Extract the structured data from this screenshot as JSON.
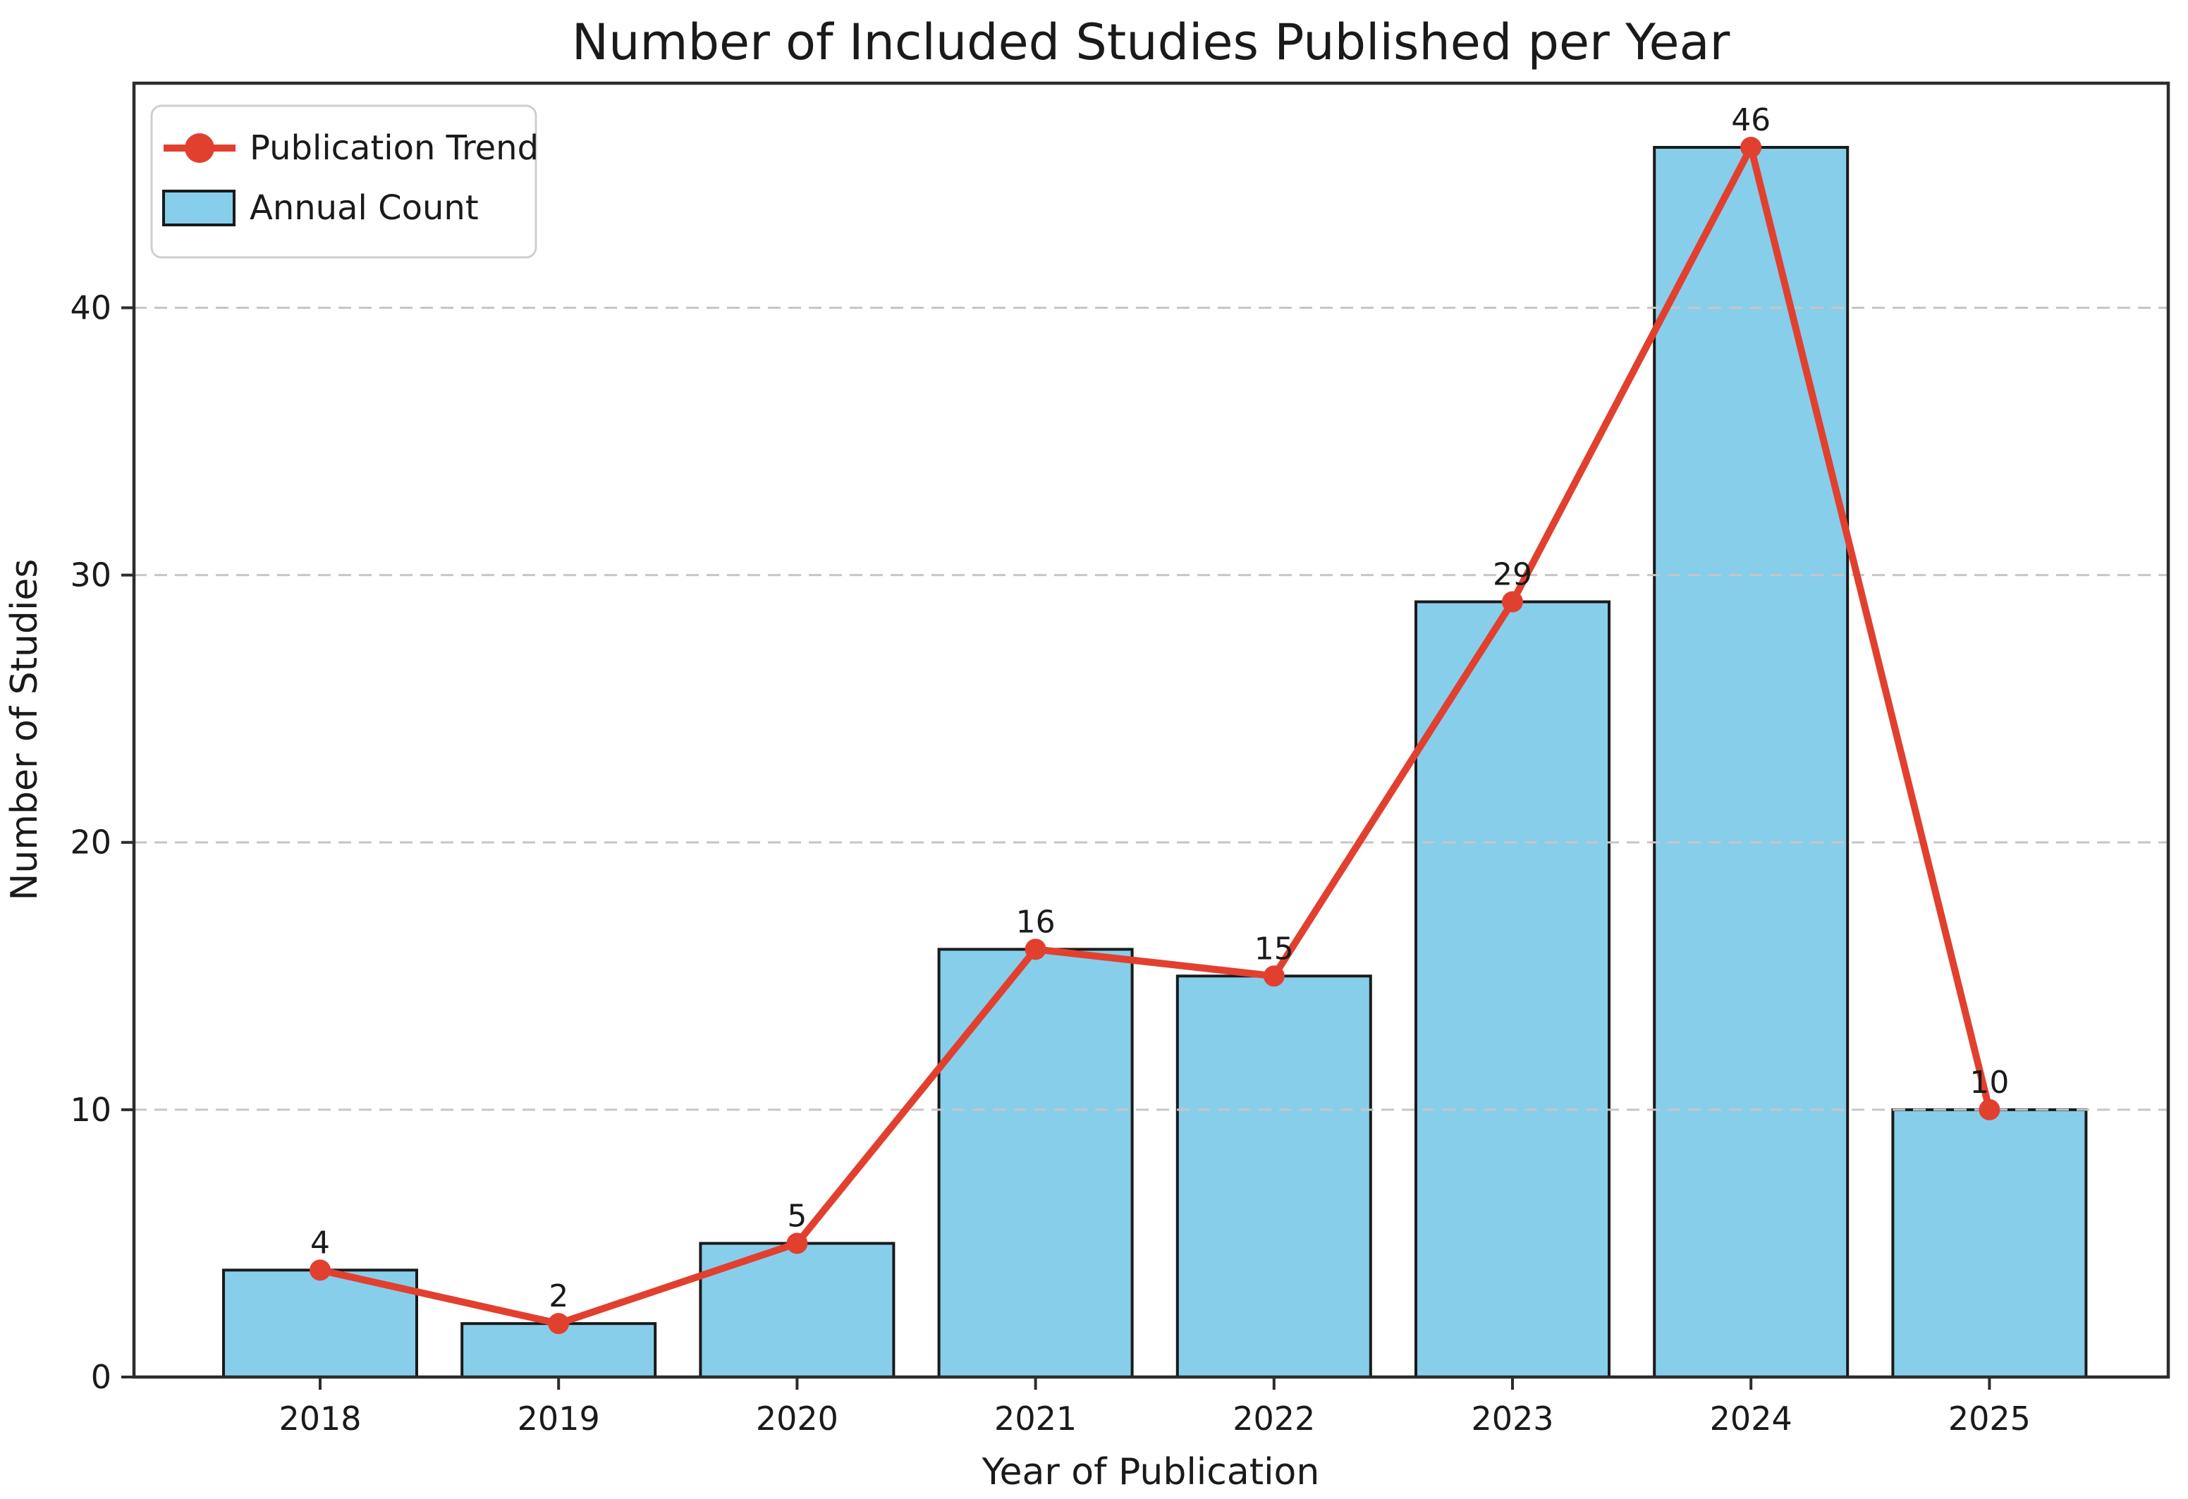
{
  "chart_data": {
    "type": "bar+line combo",
    "title": "Number of Included Studies Published per Year",
    "xlabel": "Year of Publication",
    "ylabel": "Number of Studies",
    "categories": [
      "2018",
      "2019",
      "2020",
      "2021",
      "2022",
      "2023",
      "2024",
      "2025"
    ],
    "series": [
      {
        "name": "Annual Count",
        "type": "bar",
        "values": [
          4,
          2,
          5,
          16,
          15,
          29,
          46,
          10
        ]
      },
      {
        "name": "Publication Trend",
        "type": "line",
        "values": [
          4,
          2,
          5,
          16,
          15,
          29,
          46,
          10
        ]
      }
    ],
    "data_labels": [
      "4",
      "2",
      "5",
      "16",
      "15",
      "29",
      "46",
      "10"
    ],
    "yticks": [
      0,
      10,
      20,
      30,
      40
    ],
    "ylim": [
      0,
      48.4
    ],
    "grid": {
      "axis": "y",
      "style": "dashed",
      "on": true
    },
    "legend_position": "upper-left"
  },
  "legend": {
    "items": [
      {
        "label": "Publication Trend",
        "swatch": "red-line-circle-marker"
      },
      {
        "label": "Annual Count",
        "swatch": "skyblue-rect"
      }
    ]
  },
  "colors": {
    "bar_fill": "#87CEEB",
    "bar_edge": "#1a1a1a",
    "line": "#e2402f",
    "grid": "#c6c6c6",
    "spine": "#2c2c2c",
    "text": "#1a1a1a",
    "legend_border": "#cfcfcf",
    "legend_bg": "#ffffff"
  }
}
